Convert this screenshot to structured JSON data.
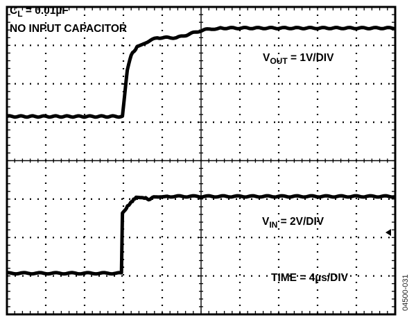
{
  "chart_data": {
    "type": "line",
    "title": "",
    "annotations": {
      "cl_main": "C",
      "cl_sub": "L",
      "cl_value": " = 0.01µF",
      "no_input_cap": "NO INPUT CAPACITOR",
      "vout_main": "V",
      "vout_sub": "OUT",
      "vout_scale": " = 1V/DIV",
      "vin_main": "V",
      "vin_sub": "IN",
      "vin_scale": " = 2V/DIV",
      "time_scale": "TIME = 4µs/DIV",
      "figure_code": "04500-031"
    },
    "x_unit": "µs",
    "xlim": [
      0,
      40
    ],
    "x_divisions": 10,
    "y_divisions": 8,
    "grid": true,
    "series": [
      {
        "name": "VOUT",
        "unit": "V",
        "volts_per_div": 1,
        "x": [
          0,
          11.9,
          12.1,
          12.4,
          12.8,
          13.4,
          14.5,
          15.5,
          16.5,
          17.5,
          18.5,
          19.5,
          20.5,
          22,
          24,
          40
        ],
        "y": [
          0,
          0,
          0.5,
          1.2,
          1.6,
          1.8,
          1.95,
          2.05,
          2.05,
          2.05,
          2.12,
          2.2,
          2.26,
          2.3,
          2.3,
          2.3
        ]
      },
      {
        "name": "VIN",
        "unit": "V",
        "volts_per_div": 2,
        "x": [
          0,
          11.8,
          11.9,
          12.3,
          12.8,
          13.3,
          14.0,
          14.6,
          15.4,
          16.5,
          40
        ],
        "y": [
          0,
          0,
          3.1,
          3.4,
          3.7,
          3.95,
          3.95,
          3.85,
          4.0,
          4.0,
          4.0
        ]
      }
    ],
    "colors": {
      "trace": "#000000",
      "grid": "#000000",
      "background": "#ffffff"
    }
  }
}
